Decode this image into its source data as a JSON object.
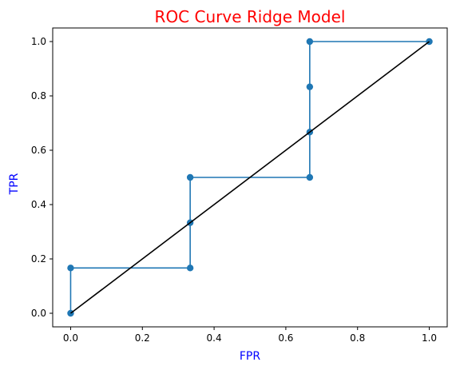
{
  "chart_data": {
    "type": "line",
    "title": "ROC Curve Ridge Model",
    "xlabel": "FPR",
    "ylabel": "TPR",
    "xlim": [
      -0.05,
      1.05
    ],
    "ylim": [
      -0.05,
      1.05
    ],
    "xticks": [
      0.0,
      0.2,
      0.4,
      0.6,
      0.8,
      1.0
    ],
    "yticks": [
      0.0,
      0.2,
      0.4,
      0.6,
      0.8,
      1.0
    ],
    "xtick_labels": [
      "0.0",
      "0.2",
      "0.4",
      "0.6",
      "0.8",
      "1.0"
    ],
    "ytick_labels": [
      "0.0",
      "0.2",
      "0.4",
      "0.6",
      "0.8",
      "1.0"
    ],
    "grid": false,
    "legend": "none",
    "series": [
      {
        "style": "line-with-markers",
        "color": "#1f77b4",
        "x": [
          0.0,
          0.0,
          0.3333,
          0.3333,
          0.3333,
          0.6667,
          0.6667,
          0.6667,
          0.6667,
          1.0
        ],
        "y": [
          0.0,
          0.1667,
          0.1667,
          0.3333,
          0.5,
          0.5,
          0.6667,
          0.8333,
          1.0,
          1.0
        ]
      },
      {
        "style": "line",
        "color": "#000000",
        "x": [
          0.0,
          1.0
        ],
        "y": [
          0.0,
          1.0
        ]
      }
    ],
    "colors": {
      "title": "#ff0000",
      "axis_label": "#0000ff",
      "text": "#000000"
    }
  }
}
